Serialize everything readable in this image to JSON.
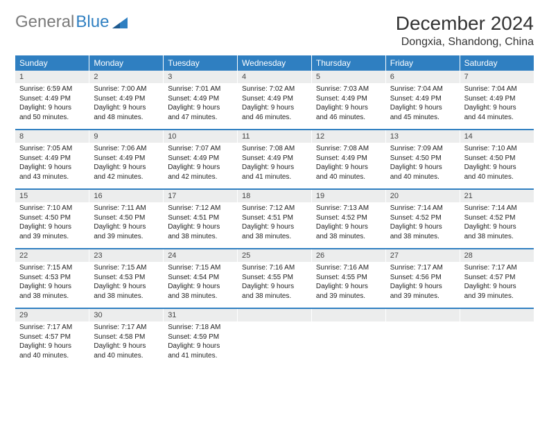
{
  "logo": {
    "text1": "General",
    "text2": "Blue"
  },
  "title": "December 2024",
  "location": "Dongxia, Shandong, China",
  "colors": {
    "header_bg": "#2f7fc1",
    "header_fg": "#ffffff",
    "daynum_bg": "#eceded",
    "text": "#222222",
    "logo_gray": "#7a7a7a",
    "logo_blue": "#2f7fc1"
  },
  "day_headers": [
    "Sunday",
    "Monday",
    "Tuesday",
    "Wednesday",
    "Thursday",
    "Friday",
    "Saturday"
  ],
  "weeks": [
    [
      {
        "n": "1",
        "sr": "6:59 AM",
        "ss": "4:49 PM",
        "dl": "9 hours and 50 minutes."
      },
      {
        "n": "2",
        "sr": "7:00 AM",
        "ss": "4:49 PM",
        "dl": "9 hours and 48 minutes."
      },
      {
        "n": "3",
        "sr": "7:01 AM",
        "ss": "4:49 PM",
        "dl": "9 hours and 47 minutes."
      },
      {
        "n": "4",
        "sr": "7:02 AM",
        "ss": "4:49 PM",
        "dl": "9 hours and 46 minutes."
      },
      {
        "n": "5",
        "sr": "7:03 AM",
        "ss": "4:49 PM",
        "dl": "9 hours and 46 minutes."
      },
      {
        "n": "6",
        "sr": "7:04 AM",
        "ss": "4:49 PM",
        "dl": "9 hours and 45 minutes."
      },
      {
        "n": "7",
        "sr": "7:04 AM",
        "ss": "4:49 PM",
        "dl": "9 hours and 44 minutes."
      }
    ],
    [
      {
        "n": "8",
        "sr": "7:05 AM",
        "ss": "4:49 PM",
        "dl": "9 hours and 43 minutes."
      },
      {
        "n": "9",
        "sr": "7:06 AM",
        "ss": "4:49 PM",
        "dl": "9 hours and 42 minutes."
      },
      {
        "n": "10",
        "sr": "7:07 AM",
        "ss": "4:49 PM",
        "dl": "9 hours and 42 minutes."
      },
      {
        "n": "11",
        "sr": "7:08 AM",
        "ss": "4:49 PM",
        "dl": "9 hours and 41 minutes."
      },
      {
        "n": "12",
        "sr": "7:08 AM",
        "ss": "4:49 PM",
        "dl": "9 hours and 40 minutes."
      },
      {
        "n": "13",
        "sr": "7:09 AM",
        "ss": "4:50 PM",
        "dl": "9 hours and 40 minutes."
      },
      {
        "n": "14",
        "sr": "7:10 AM",
        "ss": "4:50 PM",
        "dl": "9 hours and 40 minutes."
      }
    ],
    [
      {
        "n": "15",
        "sr": "7:10 AM",
        "ss": "4:50 PM",
        "dl": "9 hours and 39 minutes."
      },
      {
        "n": "16",
        "sr": "7:11 AM",
        "ss": "4:50 PM",
        "dl": "9 hours and 39 minutes."
      },
      {
        "n": "17",
        "sr": "7:12 AM",
        "ss": "4:51 PM",
        "dl": "9 hours and 38 minutes."
      },
      {
        "n": "18",
        "sr": "7:12 AM",
        "ss": "4:51 PM",
        "dl": "9 hours and 38 minutes."
      },
      {
        "n": "19",
        "sr": "7:13 AM",
        "ss": "4:52 PM",
        "dl": "9 hours and 38 minutes."
      },
      {
        "n": "20",
        "sr": "7:14 AM",
        "ss": "4:52 PM",
        "dl": "9 hours and 38 minutes."
      },
      {
        "n": "21",
        "sr": "7:14 AM",
        "ss": "4:52 PM",
        "dl": "9 hours and 38 minutes."
      }
    ],
    [
      {
        "n": "22",
        "sr": "7:15 AM",
        "ss": "4:53 PM",
        "dl": "9 hours and 38 minutes."
      },
      {
        "n": "23",
        "sr": "7:15 AM",
        "ss": "4:53 PM",
        "dl": "9 hours and 38 minutes."
      },
      {
        "n": "24",
        "sr": "7:15 AM",
        "ss": "4:54 PM",
        "dl": "9 hours and 38 minutes."
      },
      {
        "n": "25",
        "sr": "7:16 AM",
        "ss": "4:55 PM",
        "dl": "9 hours and 38 minutes."
      },
      {
        "n": "26",
        "sr": "7:16 AM",
        "ss": "4:55 PM",
        "dl": "9 hours and 39 minutes."
      },
      {
        "n": "27",
        "sr": "7:17 AM",
        "ss": "4:56 PM",
        "dl": "9 hours and 39 minutes."
      },
      {
        "n": "28",
        "sr": "7:17 AM",
        "ss": "4:57 PM",
        "dl": "9 hours and 39 minutes."
      }
    ],
    [
      {
        "n": "29",
        "sr": "7:17 AM",
        "ss": "4:57 PM",
        "dl": "9 hours and 40 minutes."
      },
      {
        "n": "30",
        "sr": "7:17 AM",
        "ss": "4:58 PM",
        "dl": "9 hours and 40 minutes."
      },
      {
        "n": "31",
        "sr": "7:18 AM",
        "ss": "4:59 PM",
        "dl": "9 hours and 41 minutes."
      },
      null,
      null,
      null,
      null
    ]
  ],
  "labels": {
    "sunrise": "Sunrise: ",
    "sunset": "Sunset: ",
    "daylight": "Daylight: "
  }
}
